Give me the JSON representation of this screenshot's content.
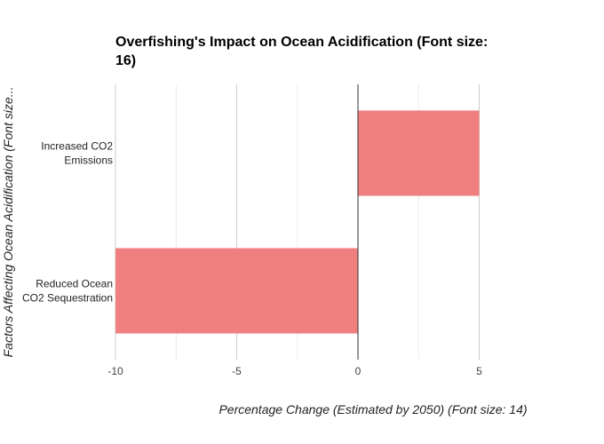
{
  "chart_data": {
    "type": "bar",
    "orientation": "horizontal",
    "title": "Overfishing's Impact on Ocean Acidification (Font size: 16)",
    "xlabel": "Percentage Change (Estimated by 2050) (Font size: 14)",
    "ylabel": "Factors Affecting Ocean Acidification (Font size...",
    "categories": [
      "Increased CO2 Emissions",
      "Reduced Ocean CO2 Sequestration"
    ],
    "category_lines": [
      [
        "Increased CO2",
        "Emissions"
      ],
      [
        "Reduced Ocean",
        "CO2 Sequestration"
      ]
    ],
    "values": [
      5,
      -10
    ],
    "xlim": [
      -10,
      6.3
    ],
    "xticks": [
      -10,
      -5,
      0,
      5
    ],
    "minor_gridlines": [
      -7.5,
      -2.5,
      2.5
    ],
    "grid": true,
    "legend": "none",
    "colors": {
      "bar": "#f08080",
      "gridline": "#cccccc",
      "minor_gridline": "#ebebeb",
      "zero_line": "#333333"
    }
  }
}
